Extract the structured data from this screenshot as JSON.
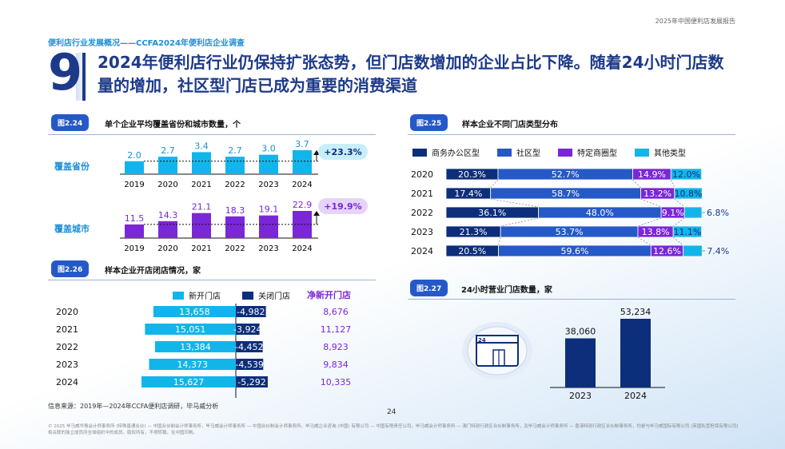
{
  "report_title": "2025年中国便利店发展报告",
  "section": "便利店行业发展概况——CCFA2024年便利店企业调查",
  "big_number": "9",
  "headline": "2024年便利店行业仍保持扩张态势，但门店数增加的企业占比下降。随着24小时门店数量的增加，社区型门店已成为重要的消费渠道",
  "fig224": {
    "tag": "图2.24",
    "title": "单个企业平均覆盖省份和城市数量，个",
    "row1_label": "覆盖省份",
    "row2_label": "覆盖城市",
    "badge1": "+23.3%",
    "badge2": "+19.9%",
    "colors": {
      "row1": "#12b5ea",
      "row2": "#7a27d8"
    }
  },
  "fig225": {
    "tag": "图2.25",
    "title": "样本企业不同门店类型分布",
    "legend": [
      "商务办公区型",
      "社区型",
      "特定商圈型",
      "其他类型"
    ],
    "colors": [
      "#0d2e7a",
      "#2659c8",
      "#7a27d8",
      "#12b5ea"
    ]
  },
  "fig226": {
    "tag": "图2.26",
    "title": "样本企业开店闭店情况，家",
    "legend_open": "新开门店",
    "legend_close": "关闭门店",
    "legend_net": "净新开门店",
    "colors": {
      "open": "#12b5ea",
      "close": "#0d2e7a",
      "net": "#7a27d8"
    }
  },
  "fig227": {
    "tag": "图2.27",
    "title": "24小时营业门店数量，家",
    "icon_text": "24",
    "color": "#0d2e7a"
  },
  "chart_data": [
    {
      "id": "fig224",
      "type": "bar",
      "title": "单个企业平均覆盖省份和城市数量，个",
      "categories": [
        "2019",
        "2020",
        "2021",
        "2022",
        "2023",
        "2024"
      ],
      "series": [
        {
          "name": "覆盖省份",
          "values": [
            2.0,
            2.7,
            3.4,
            2.7,
            3.0,
            3.7
          ],
          "labels": [
            "2.0",
            "2.7",
            "3.4",
            "2.7",
            "3.0",
            "3.7"
          ]
        },
        {
          "name": "覆盖城市",
          "values": [
            11.5,
            14.3,
            21.1,
            18.3,
            19.1,
            22.9
          ],
          "labels": [
            "11.5",
            "14.3",
            "21.1",
            "18.3",
            "19.1",
            "22.9"
          ]
        }
      ]
    },
    {
      "id": "fig225",
      "type": "bar",
      "stacked": true,
      "horizontal": true,
      "title": "样本企业不同门店类型分布",
      "categories": [
        "2020",
        "2021",
        "2022",
        "2023",
        "2024"
      ],
      "series": [
        {
          "name": "商务办公区型",
          "values": [
            20.3,
            17.4,
            36.1,
            21.3,
            20.5
          ],
          "labels": [
            "20.3%",
            "17.4%",
            "36.1%",
            "21.3%",
            "20.5%"
          ]
        },
        {
          "name": "社区型",
          "values": [
            52.7,
            58.7,
            48.0,
            53.7,
            59.6
          ],
          "labels": [
            "52.7%",
            "58.7%",
            "48.0%",
            "53.7%",
            "59.6%"
          ]
        },
        {
          "name": "特定商圈型",
          "values": [
            14.9,
            13.2,
            9.1,
            13.8,
            12.6
          ],
          "labels": [
            "14.9%",
            "13.2%",
            "9.1%",
            "13.8%",
            "12.6%"
          ]
        },
        {
          "name": "其他类型",
          "values": [
            12.0,
            10.8,
            6.8,
            11.1,
            7.4
          ],
          "labels": [
            "12.0%",
            "10.8%",
            "6.8%",
            "11.1%",
            "7.4%"
          ]
        }
      ]
    },
    {
      "id": "fig226",
      "type": "bar",
      "horizontal": true,
      "title": "样本企业开店闭店情况，家",
      "categories": [
        "2020",
        "2021",
        "2022",
        "2023",
        "2024"
      ],
      "series": [
        {
          "name": "新开门店",
          "values": [
            13658,
            15051,
            13384,
            14373,
            15627
          ],
          "labels": [
            "13,658",
            "15,051",
            "13,384",
            "14,373",
            "15,627"
          ]
        },
        {
          "name": "关闭门店",
          "values": [
            -4982,
            -3924,
            -4452,
            -4539,
            -5292
          ],
          "labels": [
            "-4,982",
            "-3,924",
            "-4,452",
            "-4,539",
            "-5,292"
          ]
        },
        {
          "name": "净新开门店",
          "values": [
            8676,
            11127,
            8923,
            9834,
            10335
          ],
          "labels": [
            "8,676",
            "11,127",
            "8,923",
            "9,834",
            "10,335"
          ]
        }
      ]
    },
    {
      "id": "fig227",
      "type": "bar",
      "title": "24小时营业门店数量，家",
      "categories": [
        "2023",
        "2024"
      ],
      "values": [
        38060,
        53234
      ],
      "labels": [
        "38,060",
        "53,234"
      ]
    }
  ],
  "source": "信息来源：2019年—2024年CCFA便利店调研，毕马威分析",
  "page_number": "24",
  "legal": "© 2025 毕马威华振会计师事务所 (特殊普通合伙) — 中国合伙制会计师事务所，毕马威会计师事务所 — 中国合伙制会计师事务所，毕马威企业咨询 (中国) 有限公司 — 中国有限责任公司，毕马威会计师事务所 — 澳门特别行政区合伙制事务所，及毕马威会计师事务所 — 香港特别行政区合伙制事务所，均是与毕马威国际有限公司 (英国私营担保有限公司) 相关联的独立成员所全球组织中的成员。版权所有，不得转载。在中国印刷。"
}
